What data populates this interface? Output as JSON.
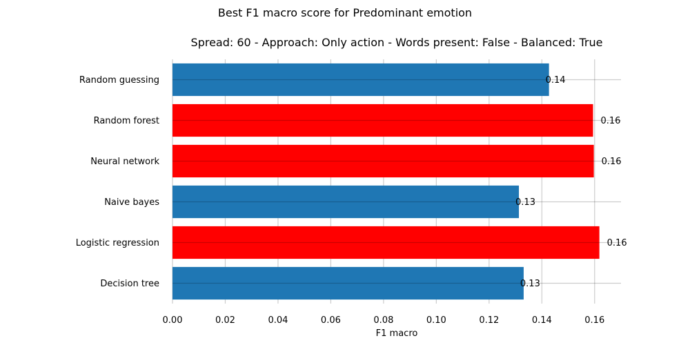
{
  "chart_data": {
    "type": "bar",
    "orientation": "horizontal",
    "suptitle": "Best F1 macro score for Predominant emotion",
    "title": "Spread: 60 - Approach: Only action - Words present: False - Balanced: True",
    "xlabel": "F1 macro",
    "ylabel": "",
    "xlim": [
      0,
      0.17
    ],
    "x_ticks": [
      "0.00",
      "0.02",
      "0.04",
      "0.06",
      "0.08",
      "0.10",
      "0.12",
      "0.14",
      "0.16"
    ],
    "grid": true,
    "categories": [
      "Random guessing",
      "Random forest",
      "Neural network",
      "Naive bayes",
      "Logistic regression",
      "Decision tree"
    ],
    "values": [
      0.1427,
      0.1594,
      0.1597,
      0.1313,
      0.1618,
      0.1331
    ],
    "value_labels": [
      "0.14",
      "0.16",
      "0.16",
      "0.13",
      "0.16",
      "0.13"
    ],
    "colors": [
      "#1f77b4",
      "#ff0000",
      "#ff0000",
      "#1f77b4",
      "#ff0000",
      "#1f77b4"
    ]
  }
}
